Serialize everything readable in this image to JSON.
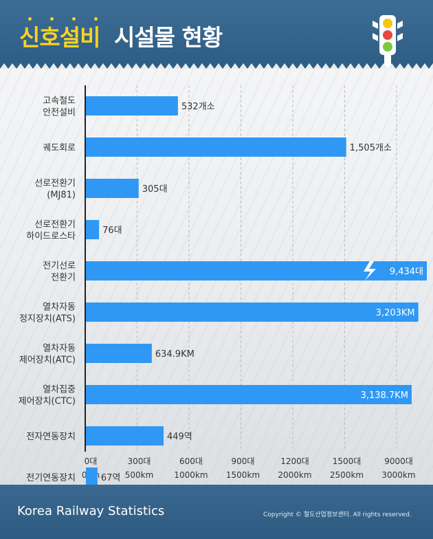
{
  "header": {
    "title_highlight": "신호설비",
    "title_rest": "시설물 현황",
    "traffic_light_icon": "traffic-light-icon",
    "colors": {
      "highlight": "#ffd21f",
      "band": "#336189"
    }
  },
  "footer": {
    "brand": "Korea Railway Statistics",
    "copyright": "Copyright © 철도산업정보센터. All rights reserved."
  },
  "chart_data": {
    "type": "bar",
    "orientation": "horizontal",
    "categories": [
      [
        "고속철도",
        "안전설비"
      ],
      [
        "궤도회로"
      ],
      [
        "선로전환기",
        "(MJ81)"
      ],
      [
        "선로전환기",
        "하이드로스타"
      ],
      [
        "전기선로",
        "전환기"
      ],
      [
        "열차자동",
        "정지장치(ATS)"
      ],
      [
        "열차자동",
        "제어장치(ATC)"
      ],
      [
        "열차집중",
        "제어장치(CTC)"
      ],
      [
        "전자연동장치"
      ],
      [
        "전기연동장치"
      ]
    ],
    "values": [
      532,
      1505,
      305,
      76,
      9434,
      3203,
      634.9,
      3138.7,
      449,
      67
    ],
    "units": [
      "개소",
      "개소",
      "대",
      "대",
      "대",
      "km",
      "km",
      "km",
      "역",
      "역"
    ],
    "value_labels": [
      "532개소",
      "1,505개소",
      "305대",
      "76대",
      "9,434대",
      "3,203KM",
      "634.9KM",
      "3,138.7KM",
      "449역",
      "67역"
    ],
    "axis_scale": [
      "count",
      "count",
      "count",
      "count",
      "count",
      "km",
      "km",
      "km",
      "count",
      "count"
    ],
    "truncated": [
      false,
      false,
      false,
      false,
      true,
      false,
      false,
      false,
      false,
      false
    ],
    "x_ticks_count": [
      "0대",
      "300대",
      "600대",
      "900대",
      "1200대",
      "1500대",
      "9000대"
    ],
    "x_ticks_km": [
      "0km",
      "500km",
      "1000km",
      "1500km",
      "2000km",
      "2500km",
      "3000km"
    ],
    "xlim_count": [
      0,
      1500
    ],
    "xlim_km": [
      0,
      2500
    ],
    "grid": true,
    "colors": {
      "bar": "#2f98f4",
      "axis": "#222222",
      "grid": "#bdbdbd"
    }
  }
}
